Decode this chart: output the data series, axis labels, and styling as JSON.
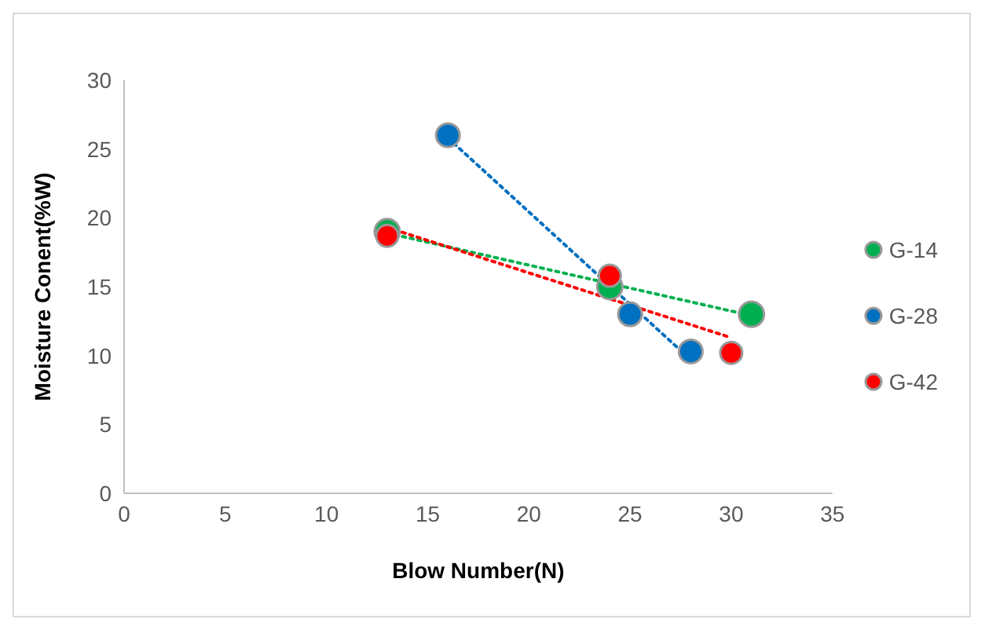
{
  "chart_data": {
    "type": "scatter",
    "xlabel": "Blow Number(N)",
    "ylabel": "Moisture Conent(%W)",
    "xlim": [
      0,
      35
    ],
    "xticks": [
      0,
      5,
      10,
      15,
      20,
      25,
      30,
      35
    ],
    "ylim": [
      0,
      30
    ],
    "yticks": [
      0,
      5,
      10,
      15,
      20,
      25,
      30
    ],
    "grid": false,
    "legend": "right",
    "marker": "circle",
    "series": [
      {
        "name": "G-14",
        "color": "#00b050",
        "x": [
          13,
          24,
          31
        ],
        "values": [
          19,
          15,
          13
        ]
      },
      {
        "name": "G-28",
        "color": "#0070c0",
        "x": [
          16,
          25,
          28
        ],
        "values": [
          26,
          13,
          10.3
        ]
      },
      {
        "name": "G-42",
        "color": "#ff0000",
        "x": [
          13,
          24,
          30
        ],
        "values": [
          18.7,
          15.8,
          10.2
        ]
      },
      {
        "type": "line",
        "color": "#00b050",
        "line_style": "dotted",
        "marker": "none",
        "x": [
          13,
          31
        ],
        "values": [
          18.9,
          12.9
        ]
      },
      {
        "type": "line",
        "color": "#0070c0",
        "line_style": "dotted",
        "marker": "none",
        "x": [
          16,
          28
        ],
        "values": [
          25.8,
          9.7
        ]
      },
      {
        "type": "line",
        "color": "#ff0000",
        "line_style": "dotted",
        "marker": "none",
        "x": [
          13,
          30
        ],
        "values": [
          19.3,
          11.3
        ]
      }
    ]
  }
}
